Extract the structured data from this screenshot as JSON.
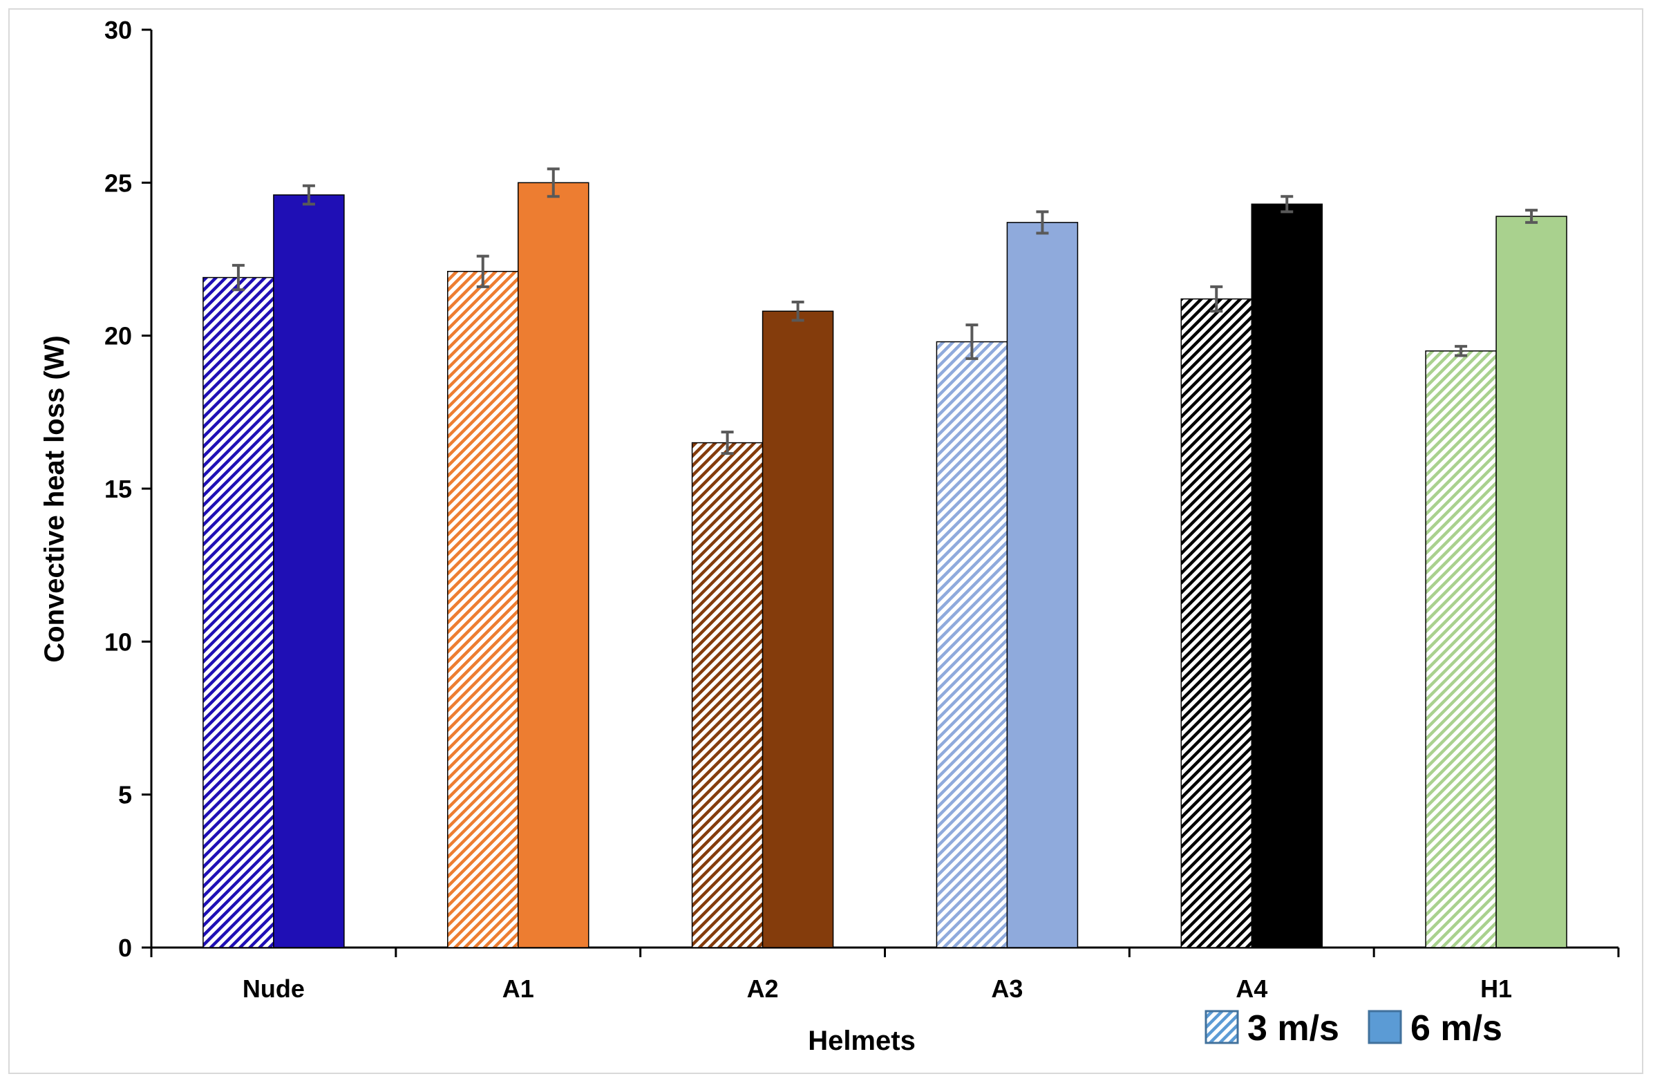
{
  "chart_data": {
    "type": "bar",
    "title": "",
    "xlabel": "Helmets",
    "ylabel": "Convective heat loss (W)",
    "ylim": [
      0,
      30
    ],
    "yticks": [
      0,
      5,
      10,
      15,
      20,
      25,
      30
    ],
    "grid": false,
    "categories": [
      "Nude",
      "A1",
      "A2",
      "A3",
      "A4",
      "H1"
    ],
    "series": [
      {
        "name": "3 m/s",
        "pattern": "diagonal-hatch",
        "values": [
          21.9,
          22.1,
          16.5,
          19.8,
          21.2,
          19.5
        ],
        "errors": [
          0.4,
          0.5,
          0.35,
          0.55,
          0.4,
          0.15
        ],
        "colors": [
          "#1f0fb5",
          "#ed7d31",
          "#843c0c",
          "#8faadc",
          "#000000",
          "#a9d18e"
        ]
      },
      {
        "name": "6 m/s",
        "pattern": "solid",
        "values": [
          24.6,
          25.0,
          20.8,
          23.7,
          24.3,
          23.9
        ],
        "errors": [
          0.3,
          0.45,
          0.3,
          0.35,
          0.25,
          0.2
        ],
        "colors": [
          "#1f0fb5",
          "#ed7d31",
          "#843c0c",
          "#8faadc",
          "#000000",
          "#a9d18e"
        ]
      }
    ],
    "legend": {
      "position": "bottom-right",
      "entries": [
        {
          "label": "3 m/s",
          "color": "#5b9bd5",
          "pattern": "diagonal-hatch"
        },
        {
          "label": "6 m/s",
          "color": "#5b9bd5",
          "pattern": "solid"
        }
      ]
    },
    "error_bar_color": "#595959"
  }
}
